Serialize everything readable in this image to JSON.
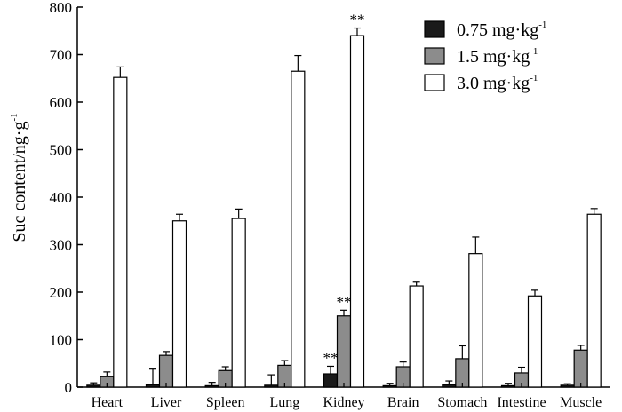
{
  "chart_data": {
    "type": "bar",
    "title": "",
    "xlabel": "",
    "ylabel": "Suc content/ng·g",
    "ylabel_superscript": "-1",
    "ylim": [
      0,
      800
    ],
    "yticks": [
      "0",
      "100",
      "200",
      "300",
      "400",
      "500",
      "600",
      "700",
      "800"
    ],
    "categories": [
      "Heart",
      "Liver",
      "Spleen",
      "Lung",
      "Kidney",
      "Brain",
      "Stomach",
      "Intestine",
      "Muscle"
    ],
    "series": [
      {
        "name": "0.75 mg·kg",
        "name_superscript": "-1",
        "color": "#1a1a1a",
        "values": [
          4,
          5,
          3,
          4,
          28,
          3,
          5,
          3,
          4
        ],
        "errors": [
          5,
          33,
          7,
          22,
          16,
          5,
          8,
          5,
          3
        ]
      },
      {
        "name": "1.5 mg·kg",
        "name_superscript": "-1",
        "color": "#8c8c8c",
        "values": [
          22,
          67,
          35,
          46,
          150,
          43,
          60,
          30,
          78
        ],
        "errors": [
          10,
          8,
          8,
          10,
          12,
          10,
          27,
          12,
          10
        ]
      },
      {
        "name": "3.0 mg·kg",
        "name_superscript": "-1",
        "color": "#ffffff",
        "values": [
          652,
          350,
          355,
          665,
          740,
          213,
          281,
          192,
          364
        ],
        "errors": [
          22,
          14,
          20,
          33,
          16,
          8,
          35,
          12,
          12
        ]
      }
    ],
    "annotations": [
      {
        "text": "**",
        "category": "Kidney",
        "series": 0
      },
      {
        "text": "**",
        "category": "Kidney",
        "series": 1
      },
      {
        "text": "**",
        "category": "Kidney",
        "series": 2
      }
    ],
    "legend_position": "top-right",
    "grid": false
  }
}
